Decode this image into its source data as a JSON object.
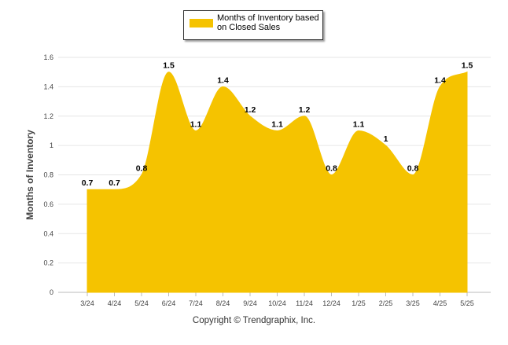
{
  "chart_data": {
    "type": "area",
    "categories": [
      "3/24",
      "4/24",
      "5/24",
      "6/24",
      "7/24",
      "8/24",
      "9/24",
      "10/24",
      "11/24",
      "12/24",
      "1/25",
      "2/25",
      "3/25",
      "4/25",
      "5/25"
    ],
    "series": [
      {
        "name": "Months of Inventory based on Closed Sales",
        "values": [
          0.7,
          0.7,
          0.8,
          1.5,
          1.1,
          1.4,
          1.2,
          1.1,
          1.2,
          0.8,
          1.1,
          1.0,
          0.8,
          1.4,
          1.5
        ],
        "labels": [
          "0.7",
          "0.7",
          "0.8",
          "1.5",
          "1.1",
          "1.4",
          "1.2",
          "1.1",
          "1.2",
          "0.8",
          "1.1",
          "1",
          "0.8",
          "1.4",
          "1.5"
        ]
      }
    ],
    "ylabel": "Months of Inventory",
    "xlabel": "",
    "title": "",
    "ylim": [
      0,
      1.6
    ],
    "yticks": [
      "0",
      "0.2",
      "0.4",
      "0.6",
      "0.8",
      "1",
      "1.2",
      "1.4",
      "1.6"
    ],
    "grid": true,
    "legend_position": "top-center",
    "colors": {
      "fill": "#F5C300",
      "grid": "#e6e6e6",
      "axis": "#999999"
    }
  },
  "footer": {
    "copyright": "Copyright © Trendgraphix, Inc."
  }
}
